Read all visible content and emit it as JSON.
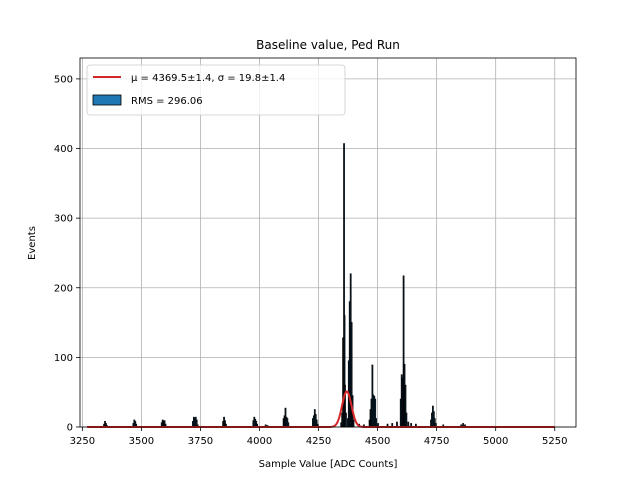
{
  "chart_data": {
    "type": "bar",
    "title": "Baseline value, Ped Run",
    "xlabel": "Sample Value [ADC Counts]",
    "ylabel": "Events",
    "xlim": [
      3240,
      5340
    ],
    "ylim": [
      0,
      530
    ],
    "xticks": [
      3250,
      3500,
      3750,
      4000,
      4250,
      4500,
      4750,
      5000,
      5250
    ],
    "yticks": [
      0,
      100,
      200,
      300,
      400,
      500
    ],
    "grid": true,
    "legend_position": "top-left",
    "histogram": {
      "name": "RMS = 296.06",
      "color": "#1f77b4",
      "edge_color": "#000000",
      "bins": [
        [
          3340,
          4
        ],
        [
          3344,
          8
        ],
        [
          3348,
          5
        ],
        [
          3352,
          2
        ],
        [
          3464,
          5
        ],
        [
          3468,
          10
        ],
        [
          3472,
          8
        ],
        [
          3476,
          4
        ],
        [
          3584,
          6
        ],
        [
          3588,
          10
        ],
        [
          3592,
          8
        ],
        [
          3596,
          9
        ],
        [
          3600,
          4
        ],
        [
          3716,
          8
        ],
        [
          3720,
          14
        ],
        [
          3724,
          12
        ],
        [
          3728,
          14
        ],
        [
          3732,
          10
        ],
        [
          3736,
          3
        ],
        [
          3844,
          8
        ],
        [
          3848,
          14
        ],
        [
          3852,
          9
        ],
        [
          3856,
          4
        ],
        [
          3972,
          9
        ],
        [
          3976,
          14
        ],
        [
          3980,
          11
        ],
        [
          3984,
          8
        ],
        [
          3988,
          4
        ],
        [
          4024,
          3
        ],
        [
          4032,
          2
        ],
        [
          4100,
          12
        ],
        [
          4104,
          16
        ],
        [
          4108,
          27
        ],
        [
          4112,
          14
        ],
        [
          4116,
          12
        ],
        [
          4120,
          6
        ],
        [
          4224,
          12
        ],
        [
          4228,
          16
        ],
        [
          4232,
          25
        ],
        [
          4236,
          18
        ],
        [
          4240,
          10
        ],
        [
          4244,
          4
        ],
        [
          4344,
          6
        ],
        [
          4348,
          20
        ],
        [
          4352,
          128
        ],
        [
          4356,
          407
        ],
        [
          4358,
          160
        ],
        [
          4360,
          60
        ],
        [
          4364,
          20
        ],
        [
          4372,
          12
        ],
        [
          4376,
          95
        ],
        [
          4380,
          180
        ],
        [
          4384,
          220
        ],
        [
          4388,
          150
        ],
        [
          4392,
          45
        ],
        [
          4396,
          10
        ],
        [
          4420,
          4
        ],
        [
          4440,
          3
        ],
        [
          4464,
          10
        ],
        [
          4468,
          25
        ],
        [
          4472,
          40
        ],
        [
          4476,
          89
        ],
        [
          4480,
          46
        ],
        [
          4484,
          44
        ],
        [
          4488,
          40
        ],
        [
          4492,
          12
        ],
        [
          4500,
          5
        ],
        [
          4540,
          4
        ],
        [
          4560,
          5
        ],
        [
          4580,
          7
        ],
        [
          4596,
          40
        ],
        [
          4600,
          75
        ],
        [
          4604,
          70
        ],
        [
          4608,
          217
        ],
        [
          4612,
          90
        ],
        [
          4616,
          60
        ],
        [
          4620,
          20
        ],
        [
          4628,
          7
        ],
        [
          4640,
          5
        ],
        [
          4660,
          4
        ],
        [
          4724,
          10
        ],
        [
          4728,
          20
        ],
        [
          4732,
          30
        ],
        [
          4736,
          22
        ],
        [
          4740,
          12
        ],
        [
          4744,
          5
        ],
        [
          4776,
          3
        ],
        [
          4852,
          3
        ],
        [
          4860,
          5
        ],
        [
          4868,
          3
        ]
      ]
    },
    "fit": {
      "name": "$\\mu=4369.5\\pm1.4$, $\\sigma=19.8\\pm1.4$",
      "legend_text": "μ = 4369.5±1.4, σ = 19.8±1.4",
      "color": "#d62728",
      "mu": 4369.5,
      "sigma": 19.8,
      "amplitude": 51,
      "x_range": [
        3270,
        5250
      ]
    },
    "legend": [
      {
        "label": "μ = 4369.5±1.4, σ = 19.8±1.4",
        "kind": "line",
        "color": "#d62728"
      },
      {
        "label": "RMS = 296.06",
        "kind": "patch",
        "color": "#1f77b4"
      }
    ]
  }
}
